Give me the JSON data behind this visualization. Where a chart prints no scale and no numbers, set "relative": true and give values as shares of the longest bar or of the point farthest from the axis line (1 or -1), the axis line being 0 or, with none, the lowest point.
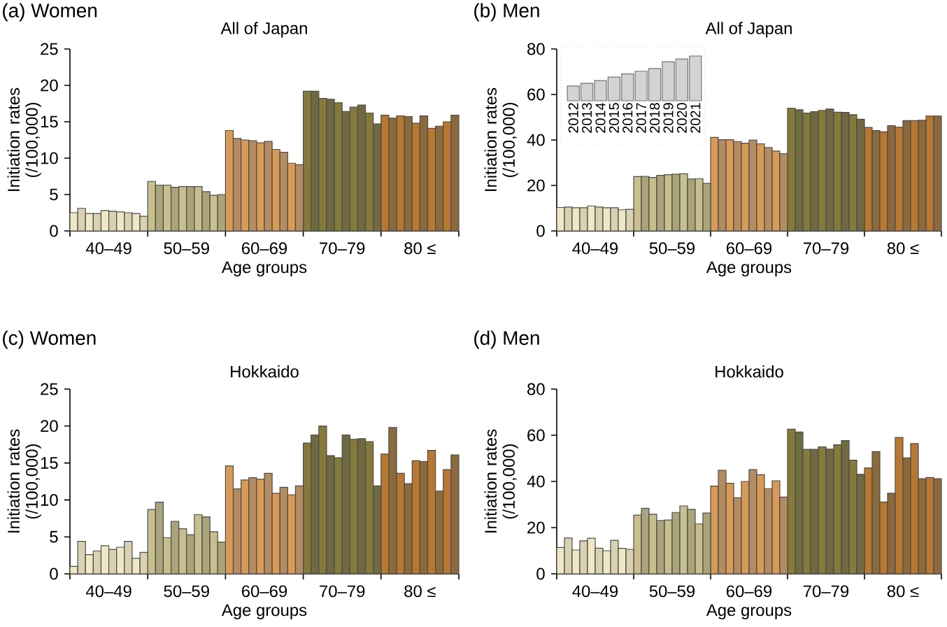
{
  "chart_data": [
    {
      "type": "bar",
      "title": "(a) Women",
      "subtitle": "All of Japan",
      "xlabel": "Age groups",
      "ylabel": "Initiation rates (/100,000)",
      "categories": [
        "40–49",
        "50–59",
        "60–69",
        "70–79",
        "80 ≤"
      ],
      "ylim": [
        0,
        25
      ],
      "yticks": [
        0,
        5,
        10,
        15,
        20,
        25
      ],
      "series": [
        {
          "colors": [
            "#f0e8c4",
            "#c9bf8c",
            "#d99a55",
            "#857a3a",
            "#b87830"
          ],
          "values": [
            2.5,
            6.8,
            13.8,
            19.2,
            15.9
          ]
        },
        {
          "colors": [
            "#d8d2b2",
            "#aaa47a",
            "#b48c62",
            "#6f6a40",
            "#8c6a3c"
          ],
          "values": [
            3.1,
            6.3,
            12.7,
            19.2,
            15.5
          ]
        },
        {
          "colors": [
            "#f0e8c4",
            "#c9bf8c",
            "#d99a55",
            "#857a3a",
            "#b87830"
          ],
          "values": [
            2.4,
            6.3,
            12.5,
            18.2,
            15.8
          ]
        },
        {
          "colors": [
            "#d8d2b2",
            "#aaa47a",
            "#b48c62",
            "#6f6a40",
            "#8c6a3c"
          ],
          "values": [
            2.4,
            6.0,
            12.4,
            18.1,
            15.7
          ]
        },
        {
          "colors": [
            "#f0e8c4",
            "#c9bf8c",
            "#d99a55",
            "#857a3a",
            "#b87830"
          ],
          "values": [
            2.8,
            6.1,
            12.1,
            17.6,
            14.8
          ]
        },
        {
          "colors": [
            "#d8d2b2",
            "#aaa47a",
            "#b48c62",
            "#6f6a40",
            "#8c6a3c"
          ],
          "values": [
            2.7,
            6.1,
            12.3,
            16.4,
            15.8
          ]
        },
        {
          "colors": [
            "#f0e8c4",
            "#c9bf8c",
            "#d99a55",
            "#857a3a",
            "#b87830"
          ],
          "values": [
            2.6,
            6.1,
            11.2,
            17.0,
            14.1
          ]
        },
        {
          "colors": [
            "#d8d2b2",
            "#aaa47a",
            "#b48c62",
            "#6f6a40",
            "#8c6a3c"
          ],
          "values": [
            2.5,
            5.4,
            10.8,
            17.3,
            14.4
          ]
        },
        {
          "colors": [
            "#f0e8c4",
            "#c9bf8c",
            "#d99a55",
            "#857a3a",
            "#b87830"
          ],
          "values": [
            2.4,
            4.9,
            9.3,
            16.2,
            15.0
          ]
        },
        {
          "colors": [
            "#d8d2b2",
            "#aaa47a",
            "#b48c62",
            "#6f6a40",
            "#8c6a3c"
          ],
          "values": [
            2.0,
            5.0,
            9.1,
            14.7,
            15.9
          ]
        }
      ]
    },
    {
      "type": "bar",
      "title": "(b) Men",
      "subtitle": "All of Japan",
      "xlabel": "Age groups",
      "ylabel": "Initiation rates (/100,000)",
      "categories": [
        "40–49",
        "50–59",
        "60–69",
        "70–79",
        "80 ≤"
      ],
      "ylim": [
        0,
        80
      ],
      "yticks": [
        0,
        20,
        40,
        60,
        80
      ],
      "series": [
        {
          "colors": [
            "#f0e8c4",
            "#c9bf8c",
            "#d99a55",
            "#857a3a",
            "#b87830"
          ],
          "values": [
            10.3,
            23.9,
            41.1,
            54.0,
            45.5
          ]
        },
        {
          "colors": [
            "#d8d2b2",
            "#aaa47a",
            "#b48c62",
            "#6f6a40",
            "#8c6a3c"
          ],
          "values": [
            10.5,
            24.0,
            40.1,
            53.3,
            44.1
          ]
        },
        {
          "colors": [
            "#f0e8c4",
            "#c9bf8c",
            "#d99a55",
            "#857a3a",
            "#b87830"
          ],
          "values": [
            10.2,
            23.5,
            40.1,
            51.8,
            43.6
          ]
        },
        {
          "colors": [
            "#d8d2b2",
            "#aaa47a",
            "#b48c62",
            "#6f6a40",
            "#8c6a3c"
          ],
          "values": [
            10.2,
            24.4,
            39.3,
            52.4,
            46.3
          ]
        },
        {
          "colors": [
            "#f0e8c4",
            "#c9bf8c",
            "#d99a55",
            "#857a3a",
            "#b87830"
          ],
          "values": [
            11.0,
            24.7,
            38.6,
            53.0,
            45.6
          ]
        },
        {
          "colors": [
            "#d8d2b2",
            "#aaa47a",
            "#b48c62",
            "#6f6a40",
            "#8c6a3c"
          ],
          "values": [
            10.5,
            25.0,
            40.0,
            53.6,
            48.5
          ]
        },
        {
          "colors": [
            "#f0e8c4",
            "#c9bf8c",
            "#d99a55",
            "#857a3a",
            "#b87830"
          ],
          "values": [
            10.2,
            25.1,
            38.3,
            52.2,
            48.5
          ]
        },
        {
          "colors": [
            "#d8d2b2",
            "#aaa47a",
            "#b48c62",
            "#6f6a40",
            "#8c6a3c"
          ],
          "values": [
            10.2,
            22.8,
            36.7,
            52.1,
            48.7
          ]
        },
        {
          "colors": [
            "#f0e8c4",
            "#c9bf8c",
            "#d99a55",
            "#857a3a",
            "#b87830"
          ],
          "values": [
            9.3,
            23.0,
            35.1,
            51.1,
            50.5
          ]
        },
        {
          "colors": [
            "#d8d2b2",
            "#aaa47a",
            "#b48c62",
            "#6f6a40",
            "#8c6a3c"
          ],
          "values": [
            9.5,
            20.9,
            34.0,
            49.1,
            50.5
          ]
        }
      ]
    },
    {
      "type": "bar",
      "relative": true,
      "categories": [
        "2012",
        "2013",
        "2014",
        "2015",
        "2016",
        "2017",
        "2018",
        "2019",
        "2020",
        "2021"
      ],
      "color": "#d3d3d3",
      "values": [
        0.33,
        0.39,
        0.45,
        0.53,
        0.6,
        0.66,
        0.72,
        0.87,
        0.93,
        1
      ]
    },
    {
      "type": "bar",
      "title": "(c) Women",
      "subtitle": "Hokkaido",
      "xlabel": "Age groups",
      "ylabel": "Initiation rates (/100,000)",
      "categories": [
        "40–49",
        "50–59",
        "60–69",
        "70–79",
        "80 ≤"
      ],
      "ylim": [
        0,
        25
      ],
      "yticks": [
        0,
        5,
        10,
        15,
        20,
        25
      ],
      "series": [
        {
          "colors": [
            "#f0e8c4",
            "#c9bf8c",
            "#d99a55",
            "#857a3a",
            "#b87830"
          ],
          "values": [
            1.0,
            8.7,
            14.6,
            17.7,
            16.2
          ]
        },
        {
          "colors": [
            "#d8d2b2",
            "#aaa47a",
            "#b48c62",
            "#6f6a40",
            "#8c6a3c"
          ],
          "values": [
            4.4,
            9.7,
            11.5,
            18.8,
            19.8
          ]
        },
        {
          "colors": [
            "#f0e8c4",
            "#c9bf8c",
            "#d99a55",
            "#857a3a",
            "#b87830"
          ],
          "values": [
            2.6,
            4.9,
            12.7,
            20.0,
            13.6
          ]
        },
        {
          "colors": [
            "#d8d2b2",
            "#aaa47a",
            "#b48c62",
            "#6f6a40",
            "#8c6a3c"
          ],
          "values": [
            3.1,
            7.1,
            13.0,
            16.0,
            12.2
          ]
        },
        {
          "colors": [
            "#f0e8c4",
            "#c9bf8c",
            "#d99a55",
            "#857a3a",
            "#b87830"
          ],
          "values": [
            3.8,
            6.1,
            12.8,
            15.7,
            15.3
          ]
        },
        {
          "colors": [
            "#d8d2b2",
            "#aaa47a",
            "#b48c62",
            "#6f6a40",
            "#8c6a3c"
          ],
          "values": [
            3.3,
            5.3,
            13.6,
            18.8,
            15.2
          ]
        },
        {
          "colors": [
            "#f0e8c4",
            "#c9bf8c",
            "#d99a55",
            "#857a3a",
            "#b87830"
          ],
          "values": [
            3.6,
            8.0,
            10.9,
            18.2,
            16.7
          ]
        },
        {
          "colors": [
            "#d8d2b2",
            "#aaa47a",
            "#b48c62",
            "#6f6a40",
            "#8c6a3c"
          ],
          "values": [
            4.4,
            7.7,
            11.7,
            18.3,
            11.2
          ]
        },
        {
          "colors": [
            "#f0e8c4",
            "#c9bf8c",
            "#d99a55",
            "#857a3a",
            "#b87830"
          ],
          "values": [
            2.1,
            5.7,
            10.7,
            17.9,
            14.1
          ]
        },
        {
          "colors": [
            "#d8d2b2",
            "#aaa47a",
            "#b48c62",
            "#6f6a40",
            "#8c6a3c"
          ],
          "values": [
            2.9,
            4.3,
            11.9,
            11.9,
            16.1
          ]
        }
      ]
    },
    {
      "type": "bar",
      "title": "(d) Men",
      "subtitle": "Hokkaido",
      "xlabel": "Age groups",
      "ylabel": "Initiation rates (/100,000)",
      "categories": [
        "40–49",
        "50–59",
        "60–69",
        "70–79",
        "80 ≤"
      ],
      "ylim": [
        0,
        80
      ],
      "yticks": [
        0,
        20,
        40,
        60,
        80
      ],
      "series": [
        {
          "colors": [
            "#f0e8c4",
            "#c9bf8c",
            "#d99a55",
            "#857a3a",
            "#b87830"
          ],
          "values": [
            11.4,
            25.4,
            38.0,
            62.6,
            45.9
          ]
        },
        {
          "colors": [
            "#d8d2b2",
            "#aaa47a",
            "#b48c62",
            "#6f6a40",
            "#8c6a3c"
          ],
          "values": [
            15.5,
            28.4,
            44.8,
            61.4,
            52.9
          ]
        },
        {
          "colors": [
            "#f0e8c4",
            "#c9bf8c",
            "#d99a55",
            "#857a3a",
            "#b87830"
          ],
          "values": [
            10.3,
            25.8,
            39.2,
            53.9,
            31.1
          ]
        },
        {
          "colors": [
            "#d8d2b2",
            "#aaa47a",
            "#b48c62",
            "#6f6a40",
            "#8c6a3c"
          ],
          "values": [
            14.3,
            23.1,
            32.9,
            53.9,
            34.9
          ]
        },
        {
          "colors": [
            "#f0e8c4",
            "#c9bf8c",
            "#d99a55",
            "#857a3a",
            "#b87830"
          ],
          "values": [
            15.4,
            23.3,
            40.0,
            55.0,
            59.1
          ]
        },
        {
          "colors": [
            "#d8d2b2",
            "#aaa47a",
            "#b48c62",
            "#6f6a40",
            "#8c6a3c"
          ],
          "values": [
            11.1,
            26.6,
            45.1,
            54.0,
            50.2
          ]
        },
        {
          "colors": [
            "#f0e8c4",
            "#c9bf8c",
            "#d99a55",
            "#857a3a",
            "#b87830"
          ],
          "values": [
            10.0,
            29.4,
            42.9,
            55.9,
            56.4
          ]
        },
        {
          "colors": [
            "#d8d2b2",
            "#aaa47a",
            "#b48c62",
            "#6f6a40",
            "#8c6a3c"
          ],
          "values": [
            14.5,
            27.9,
            36.9,
            57.7,
            41.2
          ]
        },
        {
          "colors": [
            "#f0e8c4",
            "#c9bf8c",
            "#d99a55",
            "#857a3a",
            "#b87830"
          ],
          "values": [
            11.0,
            21.6,
            40.3,
            49.2,
            41.7
          ]
        },
        {
          "colors": [
            "#d8d2b2",
            "#aaa47a",
            "#b48c62",
            "#6f6a40",
            "#8c6a3c"
          ],
          "values": [
            10.6,
            26.3,
            33.2,
            43.1,
            41.2
          ]
        }
      ]
    }
  ]
}
